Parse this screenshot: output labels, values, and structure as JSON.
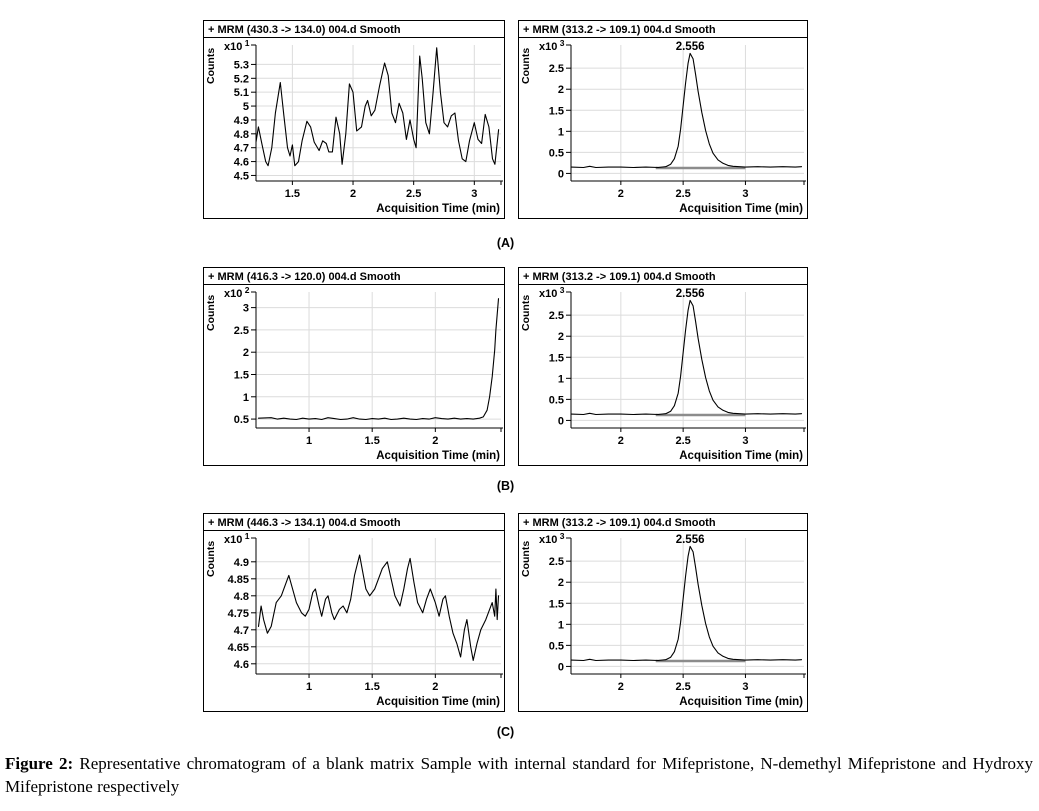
{
  "labels": {
    "a": "(A)",
    "b": "(B)",
    "c": "(C)"
  },
  "caption": {
    "label": "Figure 2:",
    "text": "Representative chromatogram of a blank matrix Sample with internal standard for Mifepristone, N-demethyl Mifepristone and Hydroxy Mifepristone respectively"
  },
  "colors": {
    "trace": "#000000",
    "grid": "#dcdcdc",
    "axis": "#000000",
    "integration_baseline": "#8c8c8c"
  },
  "chart_data": [
    {
      "id": "a_left",
      "type": "line",
      "title": "+ MRM (430.3 -> 134.0) 004.d  Smooth",
      "ylabel": "Counts",
      "y_scale_base": "x10",
      "y_scale_exp": "1",
      "xlabel": "Acquisition Time (min)",
      "xlim": [
        1.2,
        3.22
      ],
      "ylim": [
        4.46,
        5.44
      ],
      "xticks": [
        1.5,
        2,
        2.5,
        3
      ],
      "yticks": [
        4.5,
        4.6,
        4.7,
        4.8,
        4.9,
        5,
        5.1,
        5.2,
        5.3
      ],
      "grid": true,
      "peak_label": null,
      "points": [
        [
          1.2,
          4.74
        ],
        [
          1.22,
          4.85
        ],
        [
          1.25,
          4.72
        ],
        [
          1.28,
          4.6
        ],
        [
          1.3,
          4.57
        ],
        [
          1.33,
          4.7
        ],
        [
          1.36,
          4.95
        ],
        [
          1.4,
          5.17
        ],
        [
          1.43,
          4.93
        ],
        [
          1.46,
          4.7
        ],
        [
          1.48,
          4.64
        ],
        [
          1.5,
          4.72
        ],
        [
          1.52,
          4.57
        ],
        [
          1.55,
          4.6
        ],
        [
          1.58,
          4.75
        ],
        [
          1.62,
          4.89
        ],
        [
          1.65,
          4.85
        ],
        [
          1.68,
          4.74
        ],
        [
          1.72,
          4.68
        ],
        [
          1.75,
          4.75
        ],
        [
          1.78,
          4.73
        ],
        [
          1.8,
          4.67
        ],
        [
          1.83,
          4.67
        ],
        [
          1.86,
          4.92
        ],
        [
          1.89,
          4.8
        ],
        [
          1.91,
          4.58
        ],
        [
          1.94,
          4.8
        ],
        [
          1.97,
          5.16
        ],
        [
          2.0,
          5.1
        ],
        [
          2.03,
          4.82
        ],
        [
          2.07,
          4.85
        ],
        [
          2.1,
          5.0
        ],
        [
          2.12,
          5.04
        ],
        [
          2.15,
          4.93
        ],
        [
          2.18,
          4.97
        ],
        [
          2.22,
          5.15
        ],
        [
          2.26,
          5.31
        ],
        [
          2.29,
          5.22
        ],
        [
          2.32,
          4.95
        ],
        [
          2.35,
          4.88
        ],
        [
          2.38,
          5.02
        ],
        [
          2.41,
          4.95
        ],
        [
          2.44,
          4.76
        ],
        [
          2.47,
          4.9
        ],
        [
          2.5,
          4.76
        ],
        [
          2.52,
          4.7
        ],
        [
          2.55,
          5.36
        ],
        [
          2.57,
          5.2
        ],
        [
          2.6,
          4.88
        ],
        [
          2.63,
          4.8
        ],
        [
          2.66,
          5.1
        ],
        [
          2.69,
          5.42
        ],
        [
          2.72,
          5.1
        ],
        [
          2.75,
          4.88
        ],
        [
          2.78,
          4.85
        ],
        [
          2.81,
          4.93
        ],
        [
          2.84,
          4.95
        ],
        [
          2.87,
          4.75
        ],
        [
          2.9,
          4.62
        ],
        [
          2.93,
          4.6
        ],
        [
          2.96,
          4.75
        ],
        [
          3.0,
          4.88
        ],
        [
          3.03,
          4.76
        ],
        [
          3.06,
          4.73
        ],
        [
          3.09,
          4.94
        ],
        [
          3.12,
          4.85
        ],
        [
          3.15,
          4.62
        ],
        [
          3.17,
          4.58
        ],
        [
          3.2,
          4.83
        ]
      ]
    },
    {
      "id": "a_right",
      "type": "line",
      "title": "+ MRM (313.2 -> 109.1) 004.d  Smooth",
      "ylabel": "Counts",
      "y_scale_base": "x10",
      "y_scale_exp": "3",
      "xlabel": "Acquisition Time (min)",
      "xlim": [
        1.6,
        3.47
      ],
      "ylim": [
        -0.18,
        3.05
      ],
      "xticks": [
        2,
        2.5,
        3
      ],
      "yticks": [
        0,
        0.5,
        1,
        1.5,
        2,
        2.5
      ],
      "grid": true,
      "peak_label": "2.556",
      "peak_x": 2.556,
      "baseline": {
        "x1": 2.28,
        "x2": 3.0,
        "y": 0.13
      },
      "points": [
        [
          1.6,
          0.15
        ],
        [
          1.7,
          0.14
        ],
        [
          1.75,
          0.17
        ],
        [
          1.8,
          0.14
        ],
        [
          1.9,
          0.15
        ],
        [
          2.0,
          0.15
        ],
        [
          2.1,
          0.14
        ],
        [
          2.2,
          0.15
        ],
        [
          2.3,
          0.14
        ],
        [
          2.36,
          0.16
        ],
        [
          2.4,
          0.22
        ],
        [
          2.43,
          0.35
        ],
        [
          2.46,
          0.65
        ],
        [
          2.48,
          1.05
        ],
        [
          2.5,
          1.6
        ],
        [
          2.52,
          2.15
        ],
        [
          2.54,
          2.62
        ],
        [
          2.556,
          2.85
        ],
        [
          2.58,
          2.72
        ],
        [
          2.6,
          2.35
        ],
        [
          2.62,
          1.95
        ],
        [
          2.65,
          1.45
        ],
        [
          2.68,
          1.02
        ],
        [
          2.71,
          0.7
        ],
        [
          2.74,
          0.48
        ],
        [
          2.78,
          0.32
        ],
        [
          2.82,
          0.24
        ],
        [
          2.86,
          0.19
        ],
        [
          2.9,
          0.17
        ],
        [
          2.95,
          0.16
        ],
        [
          3.0,
          0.15
        ],
        [
          3.1,
          0.16
        ],
        [
          3.2,
          0.15
        ],
        [
          3.3,
          0.16
        ],
        [
          3.4,
          0.15
        ],
        [
          3.45,
          0.16
        ]
      ]
    },
    {
      "id": "b_left",
      "type": "line",
      "title": "+ MRM (416.3 -> 120.0) 004.d  Smooth",
      "ylabel": "Counts",
      "y_scale_base": "x10",
      "y_scale_exp": "2",
      "xlabel": "Acquisition Time (min)",
      "xlim": [
        0.58,
        2.52
      ],
      "ylim": [
        0.3,
        3.35
      ],
      "xticks": [
        1,
        1.5,
        2
      ],
      "yticks": [
        0.5,
        1,
        1.5,
        2,
        2.5,
        3
      ],
      "grid": true,
      "peak_label": null,
      "points": [
        [
          0.6,
          0.52
        ],
        [
          0.7,
          0.53
        ],
        [
          0.75,
          0.5
        ],
        [
          0.8,
          0.52
        ],
        [
          0.85,
          0.5
        ],
        [
          0.9,
          0.49
        ],
        [
          0.95,
          0.52
        ],
        [
          1.0,
          0.5
        ],
        [
          1.05,
          0.51
        ],
        [
          1.1,
          0.49
        ],
        [
          1.15,
          0.53
        ],
        [
          1.2,
          0.51
        ],
        [
          1.25,
          0.49
        ],
        [
          1.3,
          0.5
        ],
        [
          1.35,
          0.53
        ],
        [
          1.4,
          0.5
        ],
        [
          1.45,
          0.49
        ],
        [
          1.5,
          0.51
        ],
        [
          1.55,
          0.5
        ],
        [
          1.6,
          0.52
        ],
        [
          1.65,
          0.49
        ],
        [
          1.7,
          0.5
        ],
        [
          1.75,
          0.52
        ],
        [
          1.8,
          0.5
        ],
        [
          1.85,
          0.49
        ],
        [
          1.9,
          0.51
        ],
        [
          1.95,
          0.5
        ],
        [
          2.0,
          0.53
        ],
        [
          2.05,
          0.51
        ],
        [
          2.1,
          0.5
        ],
        [
          2.15,
          0.52
        ],
        [
          2.2,
          0.5
        ],
        [
          2.25,
          0.51
        ],
        [
          2.3,
          0.5
        ],
        [
          2.35,
          0.52
        ],
        [
          2.38,
          0.55
        ],
        [
          2.41,
          0.7
        ],
        [
          2.43,
          1.0
        ],
        [
          2.45,
          1.45
        ],
        [
          2.47,
          2.05
        ],
        [
          2.48,
          2.5
        ],
        [
          2.49,
          2.85
        ],
        [
          2.5,
          3.2
        ]
      ]
    },
    {
      "id": "b_right",
      "type": "line",
      "title": "+ MRM (313.2 -> 109.1) 004.d  Smooth",
      "ylabel": "Counts",
      "y_scale_base": "x10",
      "y_scale_exp": "3",
      "xlabel": "Acquisition Time (min)",
      "xlim": [
        1.6,
        3.47
      ],
      "ylim": [
        -0.18,
        3.05
      ],
      "xticks": [
        2,
        2.5,
        3
      ],
      "yticks": [
        0,
        0.5,
        1,
        1.5,
        2,
        2.5
      ],
      "grid": true,
      "peak_label": "2.556",
      "peak_x": 2.556,
      "baseline": {
        "x1": 2.28,
        "x2": 3.0,
        "y": 0.13
      },
      "points": [
        [
          1.6,
          0.15
        ],
        [
          1.7,
          0.14
        ],
        [
          1.75,
          0.17
        ],
        [
          1.8,
          0.14
        ],
        [
          1.9,
          0.15
        ],
        [
          2.0,
          0.15
        ],
        [
          2.1,
          0.14
        ],
        [
          2.2,
          0.15
        ],
        [
          2.3,
          0.14
        ],
        [
          2.36,
          0.16
        ],
        [
          2.4,
          0.22
        ],
        [
          2.43,
          0.35
        ],
        [
          2.46,
          0.65
        ],
        [
          2.48,
          1.05
        ],
        [
          2.5,
          1.6
        ],
        [
          2.52,
          2.15
        ],
        [
          2.54,
          2.62
        ],
        [
          2.556,
          2.85
        ],
        [
          2.58,
          2.72
        ],
        [
          2.6,
          2.35
        ],
        [
          2.62,
          1.95
        ],
        [
          2.65,
          1.45
        ],
        [
          2.68,
          1.02
        ],
        [
          2.71,
          0.7
        ],
        [
          2.74,
          0.48
        ],
        [
          2.78,
          0.32
        ],
        [
          2.82,
          0.24
        ],
        [
          2.86,
          0.19
        ],
        [
          2.9,
          0.17
        ],
        [
          2.95,
          0.16
        ],
        [
          3.0,
          0.15
        ],
        [
          3.1,
          0.16
        ],
        [
          3.2,
          0.15
        ],
        [
          3.3,
          0.16
        ],
        [
          3.4,
          0.15
        ],
        [
          3.45,
          0.16
        ]
      ]
    },
    {
      "id": "c_left",
      "type": "line",
      "title": "+ MRM (446.3 -> 134.1) 004.d  Smooth",
      "ylabel": "Counts",
      "y_scale_base": "x10",
      "y_scale_exp": "1",
      "xlabel": "Acquisition Time (min)",
      "xlim": [
        0.58,
        2.52
      ],
      "ylim": [
        4.57,
        4.97
      ],
      "xticks": [
        1,
        1.5,
        2
      ],
      "yticks": [
        4.6,
        4.65,
        4.7,
        4.75,
        4.8,
        4.85,
        4.9
      ],
      "grid": true,
      "peak_label": null,
      "points": [
        [
          0.6,
          4.71
        ],
        [
          0.62,
          4.77
        ],
        [
          0.64,
          4.73
        ],
        [
          0.67,
          4.69
        ],
        [
          0.7,
          4.71
        ],
        [
          0.74,
          4.78
        ],
        [
          0.78,
          4.8
        ],
        [
          0.82,
          4.84
        ],
        [
          0.84,
          4.86
        ],
        [
          0.87,
          4.82
        ],
        [
          0.9,
          4.78
        ],
        [
          0.94,
          4.75
        ],
        [
          0.97,
          4.74
        ],
        [
          1.0,
          4.76
        ],
        [
          1.03,
          4.81
        ],
        [
          1.05,
          4.82
        ],
        [
          1.08,
          4.77
        ],
        [
          1.1,
          4.74
        ],
        [
          1.13,
          4.79
        ],
        [
          1.15,
          4.8
        ],
        [
          1.18,
          4.75
        ],
        [
          1.2,
          4.73
        ],
        [
          1.24,
          4.76
        ],
        [
          1.27,
          4.77
        ],
        [
          1.3,
          4.75
        ],
        [
          1.33,
          4.79
        ],
        [
          1.36,
          4.86
        ],
        [
          1.4,
          4.92
        ],
        [
          1.42,
          4.88
        ],
        [
          1.45,
          4.82
        ],
        [
          1.48,
          4.8
        ],
        [
          1.52,
          4.82
        ],
        [
          1.55,
          4.85
        ],
        [
          1.58,
          4.88
        ],
        [
          1.62,
          4.9
        ],
        [
          1.65,
          4.85
        ],
        [
          1.68,
          4.8
        ],
        [
          1.72,
          4.77
        ],
        [
          1.75,
          4.82
        ],
        [
          1.78,
          4.88
        ],
        [
          1.8,
          4.91
        ],
        [
          1.83,
          4.84
        ],
        [
          1.86,
          4.78
        ],
        [
          1.9,
          4.75
        ],
        [
          1.93,
          4.79
        ],
        [
          1.96,
          4.82
        ],
        [
          2.0,
          4.78
        ],
        [
          2.03,
          4.74
        ],
        [
          2.06,
          4.79
        ],
        [
          2.08,
          4.8
        ],
        [
          2.11,
          4.74
        ],
        [
          2.14,
          4.69
        ],
        [
          2.17,
          4.66
        ],
        [
          2.2,
          4.62
        ],
        [
          2.23,
          4.7
        ],
        [
          2.25,
          4.73
        ],
        [
          2.28,
          4.65
        ],
        [
          2.3,
          4.61
        ],
        [
          2.33,
          4.66
        ],
        [
          2.36,
          4.7
        ],
        [
          2.4,
          4.73
        ],
        [
          2.43,
          4.76
        ],
        [
          2.45,
          4.78
        ],
        [
          2.47,
          4.74
        ],
        [
          2.48,
          4.82
        ],
        [
          2.49,
          4.73
        ],
        [
          2.5,
          4.8
        ]
      ]
    },
    {
      "id": "c_right",
      "type": "line",
      "title": "+ MRM (313.2 -> 109.1) 004.d  Smooth",
      "ylabel": "Counts",
      "y_scale_base": "x10",
      "y_scale_exp": "3",
      "xlabel": "Acquisition Time (min)",
      "xlim": [
        1.6,
        3.47
      ],
      "ylim": [
        -0.18,
        3.05
      ],
      "xticks": [
        2,
        2.5,
        3
      ],
      "yticks": [
        0,
        0.5,
        1,
        1.5,
        2,
        2.5
      ],
      "grid": true,
      "peak_label": "2.556",
      "peak_x": 2.556,
      "baseline": {
        "x1": 2.28,
        "x2": 3.0,
        "y": 0.13
      },
      "points": [
        [
          1.6,
          0.15
        ],
        [
          1.7,
          0.14
        ],
        [
          1.75,
          0.17
        ],
        [
          1.8,
          0.14
        ],
        [
          1.9,
          0.15
        ],
        [
          2.0,
          0.15
        ],
        [
          2.1,
          0.14
        ],
        [
          2.2,
          0.15
        ],
        [
          2.3,
          0.14
        ],
        [
          2.36,
          0.16
        ],
        [
          2.4,
          0.22
        ],
        [
          2.43,
          0.35
        ],
        [
          2.46,
          0.65
        ],
        [
          2.48,
          1.05
        ],
        [
          2.5,
          1.6
        ],
        [
          2.52,
          2.15
        ],
        [
          2.54,
          2.62
        ],
        [
          2.556,
          2.85
        ],
        [
          2.58,
          2.72
        ],
        [
          2.6,
          2.35
        ],
        [
          2.62,
          1.95
        ],
        [
          2.65,
          1.45
        ],
        [
          2.68,
          1.02
        ],
        [
          2.71,
          0.7
        ],
        [
          2.74,
          0.48
        ],
        [
          2.78,
          0.32
        ],
        [
          2.82,
          0.24
        ],
        [
          2.86,
          0.19
        ],
        [
          2.9,
          0.17
        ],
        [
          2.95,
          0.16
        ],
        [
          3.0,
          0.15
        ],
        [
          3.1,
          0.16
        ],
        [
          3.2,
          0.15
        ],
        [
          3.3,
          0.16
        ],
        [
          3.4,
          0.15
        ],
        [
          3.45,
          0.16
        ]
      ]
    }
  ]
}
